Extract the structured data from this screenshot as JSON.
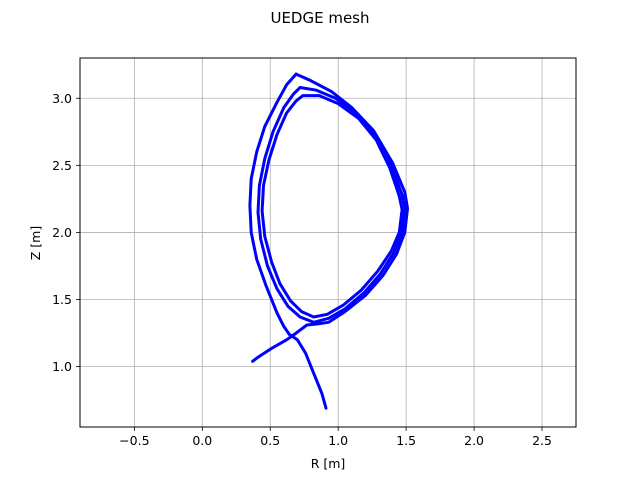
{
  "chart_data": {
    "type": "line",
    "title": "UEDGE mesh",
    "xlabel": "R [m]",
    "ylabel": "Z [m]",
    "xlim": [
      -0.9,
      2.75
    ],
    "ylim": [
      0.55,
      3.3
    ],
    "xticks": [
      -0.5,
      0.0,
      0.5,
      1.0,
      1.5,
      2.0,
      2.5
    ],
    "yticks": [
      1.0,
      1.5,
      2.0,
      2.5,
      3.0
    ],
    "xtick_labels": [
      "−0.5",
      "0.0",
      "0.5",
      "1.0",
      "1.5",
      "2.0",
      "2.5"
    ],
    "ytick_labels": [
      "1.0",
      "1.5",
      "2.0",
      "2.5",
      "3.0"
    ],
    "grid": true,
    "line_color": "#0000ff",
    "series": [
      {
        "values": [
          [
            0.69,
            3.18
          ],
          [
            0.8,
            3.13
          ],
          [
            0.95,
            3.05
          ],
          [
            1.1,
            2.93
          ],
          [
            1.26,
            2.76
          ],
          [
            1.4,
            2.52
          ],
          [
            1.49,
            2.3
          ],
          [
            1.51,
            2.18
          ],
          [
            1.49,
            2.0
          ],
          [
            1.43,
            1.84
          ],
          [
            1.33,
            1.68
          ],
          [
            1.2,
            1.53
          ],
          [
            1.05,
            1.41
          ],
          [
            0.93,
            1.33
          ],
          [
            0.86,
            1.32
          ],
          [
            0.77,
            1.31
          ],
          [
            0.69,
            1.25
          ],
          [
            0.62,
            1.2
          ],
          [
            0.5,
            1.13
          ],
          [
            0.41,
            1.07
          ],
          [
            0.37,
            1.04
          ]
        ]
      },
      {
        "values": [
          [
            0.69,
            3.18
          ],
          [
            0.62,
            3.1
          ],
          [
            0.55,
            2.97
          ],
          [
            0.46,
            2.79
          ],
          [
            0.4,
            2.6
          ],
          [
            0.36,
            2.4
          ],
          [
            0.35,
            2.2
          ],
          [
            0.36,
            2.0
          ],
          [
            0.4,
            1.8
          ],
          [
            0.47,
            1.6
          ],
          [
            0.55,
            1.4
          ],
          [
            0.6,
            1.3
          ],
          [
            0.64,
            1.24
          ],
          [
            0.7,
            1.2
          ],
          [
            0.76,
            1.1
          ],
          [
            0.82,
            0.95
          ],
          [
            0.88,
            0.8
          ],
          [
            0.91,
            0.69
          ]
        ]
      },
      {
        "values": [
          [
            0.72,
            3.08
          ],
          [
            0.84,
            3.06
          ],
          [
            0.98,
            3.0
          ],
          [
            1.13,
            2.89
          ],
          [
            1.27,
            2.72
          ],
          [
            1.39,
            2.5
          ],
          [
            1.47,
            2.28
          ],
          [
            1.49,
            2.18
          ],
          [
            1.47,
            2.0
          ],
          [
            1.41,
            1.85
          ],
          [
            1.31,
            1.69
          ],
          [
            1.19,
            1.55
          ],
          [
            1.05,
            1.43
          ],
          [
            0.93,
            1.36
          ],
          [
            0.82,
            1.33
          ],
          [
            0.72,
            1.37
          ],
          [
            0.63,
            1.45
          ],
          [
            0.55,
            1.58
          ],
          [
            0.48,
            1.75
          ],
          [
            0.43,
            1.95
          ],
          [
            0.41,
            2.15
          ],
          [
            0.42,
            2.35
          ],
          [
            0.46,
            2.55
          ],
          [
            0.52,
            2.75
          ],
          [
            0.6,
            2.93
          ],
          [
            0.67,
            3.03
          ],
          [
            0.72,
            3.08
          ]
        ]
      },
      {
        "values": [
          [
            0.74,
            3.02
          ],
          [
            0.86,
            3.02
          ],
          [
            1.0,
            2.96
          ],
          [
            1.15,
            2.85
          ],
          [
            1.28,
            2.69
          ],
          [
            1.38,
            2.48
          ],
          [
            1.45,
            2.27
          ],
          [
            1.47,
            2.17
          ],
          [
            1.45,
            2.0
          ],
          [
            1.39,
            1.86
          ],
          [
            1.29,
            1.71
          ],
          [
            1.17,
            1.57
          ],
          [
            1.04,
            1.46
          ],
          [
            0.92,
            1.39
          ],
          [
            0.82,
            1.37
          ],
          [
            0.73,
            1.41
          ],
          [
            0.65,
            1.49
          ],
          [
            0.57,
            1.62
          ],
          [
            0.51,
            1.78
          ],
          [
            0.46,
            1.97
          ],
          [
            0.44,
            2.16
          ],
          [
            0.45,
            2.35
          ],
          [
            0.49,
            2.54
          ],
          [
            0.55,
            2.73
          ],
          [
            0.62,
            2.89
          ],
          [
            0.69,
            2.98
          ],
          [
            0.74,
            3.02
          ]
        ]
      }
    ]
  }
}
